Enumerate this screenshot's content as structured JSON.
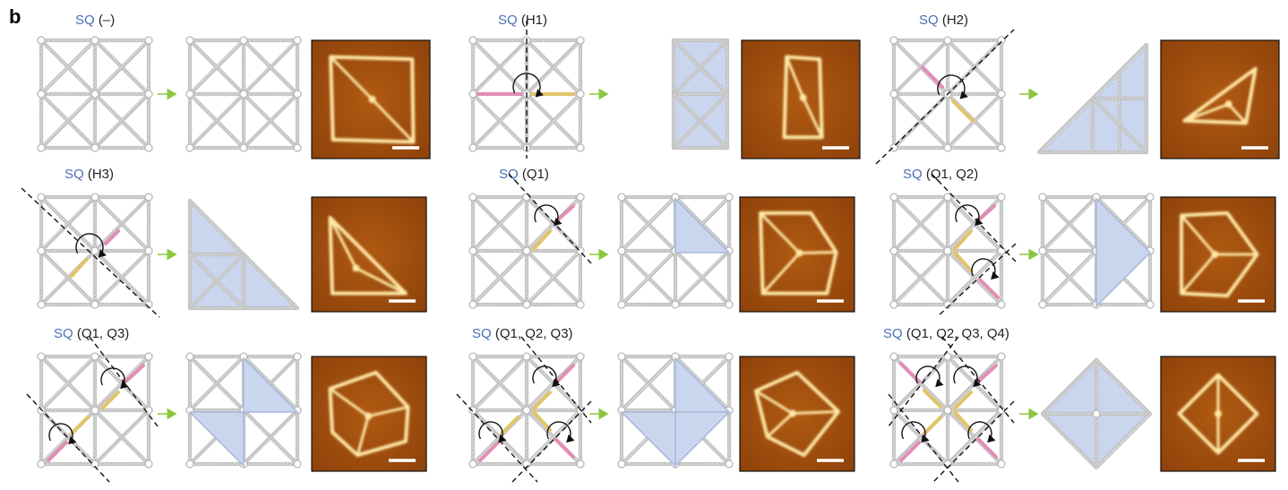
{
  "panel_letter": "b",
  "colors": {
    "frame": "#c6c6c6",
    "frame_hatch": "#9a9a9a",
    "fold_fill": "#c9d6ee",
    "fold_stroke": "#a9b8da",
    "pink": "#e28db8",
    "yellow": "#e2c56a",
    "arrow": "#8cc63f",
    "sq_blue": "#4a6fb5",
    "afm_bg": "#a24d0c",
    "afm_struct": "#ffe9a8"
  },
  "icons": [
    "rotate-arrow-icon",
    "fold-line",
    "right-arrow-icon",
    "scale-bar"
  ],
  "cells": [
    {
      "id": "none",
      "prefix": "SQ",
      "suffix": " (–)"
    },
    {
      "id": "h1",
      "prefix": "SQ",
      "suffix": " (H1)"
    },
    {
      "id": "h2",
      "prefix": "SQ",
      "suffix": " (H2)"
    },
    {
      "id": "h3",
      "prefix": "SQ",
      "suffix": " (H3)"
    },
    {
      "id": "q1",
      "prefix": "SQ",
      "suffix": " (Q1)"
    },
    {
      "id": "q1q2",
      "prefix": "SQ",
      "suffix": " (Q1, Q2)"
    },
    {
      "id": "q1q3",
      "prefix": "SQ",
      "suffix": " (Q1, Q3)"
    },
    {
      "id": "q1q2q3",
      "prefix": "SQ",
      "suffix": " (Q1, Q2, Q3)"
    },
    {
      "id": "q1q2q3q4",
      "prefix": "SQ",
      "suffix": " (Q1, Q2, Q3, Q4)"
    }
  ]
}
